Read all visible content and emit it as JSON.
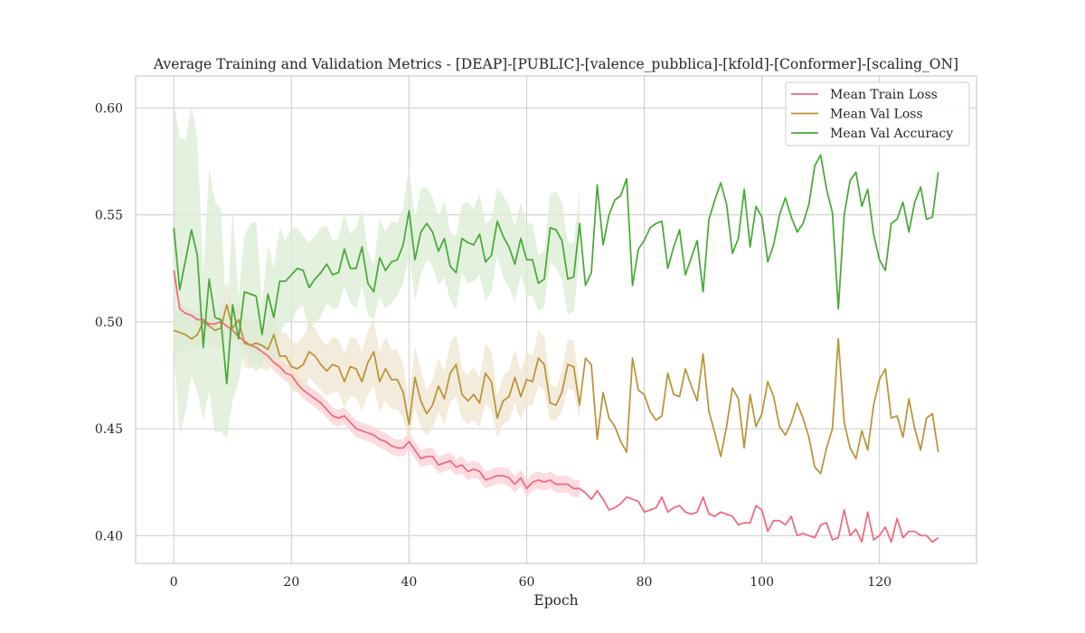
{
  "chart_data": {
    "type": "line",
    "title": "Average Training and Validation Metrics - [DEAP]-[PUBLIC]-[valence_pubblica]-[kfold]-[Conformer]-[scaling_ON]",
    "xlabel": "Epoch",
    "ylabel": "",
    "xlim": [
      -6.5,
      136.5
    ],
    "ylim": [
      0.387,
      0.615
    ],
    "xticks": [
      0,
      20,
      40,
      60,
      80,
      100,
      120
    ],
    "yticks": [
      0.4,
      0.45,
      0.5,
      0.55,
      0.6
    ],
    "grid": true,
    "legend": {
      "position": "top-right"
    },
    "bands_shown_until_epoch": 69,
    "series": [
      {
        "name": "Mean Train Loss",
        "color": "#f0697e",
        "band_color": "#fbd0d7",
        "values": [
          0.524,
          0.506,
          0.504,
          0.503,
          0.501,
          0.501,
          0.499,
          0.499,
          0.5,
          0.498,
          0.496,
          0.493,
          0.491,
          0.489,
          0.488,
          0.486,
          0.484,
          0.481,
          0.479,
          0.476,
          0.475,
          0.471,
          0.468,
          0.466,
          0.464,
          0.462,
          0.459,
          0.456,
          0.455,
          0.456,
          0.453,
          0.45,
          0.449,
          0.448,
          0.447,
          0.445,
          0.444,
          0.442,
          0.441,
          0.441,
          0.444,
          0.44,
          0.436,
          0.437,
          0.437,
          0.433,
          0.434,
          0.435,
          0.432,
          0.433,
          0.43,
          0.431,
          0.43,
          0.426,
          0.427,
          0.428,
          0.428,
          0.427,
          0.424,
          0.427,
          0.422,
          0.425,
          0.426,
          0.425,
          0.426,
          0.424,
          0.424,
          0.424,
          0.422,
          0.422,
          0.42,
          0.417,
          0.421,
          0.417,
          0.412,
          0.413,
          0.415,
          0.418,
          0.417,
          0.416,
          0.411,
          0.412,
          0.413,
          0.418,
          0.411,
          0.413,
          0.414,
          0.411,
          0.41,
          0.411,
          0.418,
          0.41,
          0.409,
          0.411,
          0.41,
          0.409,
          0.405,
          0.406,
          0.406,
          0.414,
          0.412,
          0.402,
          0.407,
          0.407,
          0.405,
          0.409,
          0.4,
          0.401,
          0.4,
          0.399,
          0.405,
          0.406,
          0.398,
          0.399,
          0.412,
          0.4,
          0.403,
          0.397,
          0.411,
          0.398,
          0.4,
          0.404,
          0.397,
          0.408,
          0.399,
          0.402,
          0.402,
          0.4,
          0.4,
          0.397,
          0.399
        ],
        "band_lower": [
          0.52,
          0.503,
          0.501,
          0.5,
          0.498,
          0.498,
          0.496,
          0.496,
          0.497,
          0.495,
          0.493,
          0.49,
          0.488,
          0.486,
          0.485,
          0.483,
          0.48,
          0.477,
          0.475,
          0.472,
          0.471,
          0.467,
          0.464,
          0.462,
          0.46,
          0.458,
          0.455,
          0.452,
          0.451,
          0.452,
          0.449,
          0.446,
          0.445,
          0.444,
          0.443,
          0.441,
          0.44,
          0.438,
          0.437,
          0.437,
          0.44,
          0.436,
          0.432,
          0.433,
          0.433,
          0.429,
          0.43,
          0.431,
          0.428,
          0.429,
          0.426,
          0.427,
          0.426,
          0.422,
          0.423,
          0.424,
          0.424,
          0.423,
          0.42,
          0.423,
          0.418,
          0.421,
          0.422,
          0.421,
          0.422,
          0.42,
          0.42,
          0.42,
          0.418,
          0.418
        ],
        "band_upper": [
          0.528,
          0.509,
          0.507,
          0.506,
          0.504,
          0.504,
          0.502,
          0.502,
          0.503,
          0.501,
          0.499,
          0.496,
          0.494,
          0.492,
          0.491,
          0.489,
          0.488,
          0.485,
          0.483,
          0.48,
          0.479,
          0.475,
          0.472,
          0.47,
          0.468,
          0.466,
          0.463,
          0.46,
          0.459,
          0.46,
          0.457,
          0.454,
          0.453,
          0.452,
          0.451,
          0.449,
          0.448,
          0.446,
          0.445,
          0.445,
          0.448,
          0.444,
          0.44,
          0.441,
          0.441,
          0.437,
          0.438,
          0.439,
          0.436,
          0.437,
          0.434,
          0.435,
          0.434,
          0.43,
          0.431,
          0.432,
          0.432,
          0.431,
          0.428,
          0.431,
          0.426,
          0.429,
          0.43,
          0.429,
          0.43,
          0.428,
          0.428,
          0.428,
          0.426,
          0.426
        ]
      },
      {
        "name": "Mean Val Loss",
        "color": "#b8943a",
        "band_color": "#efe4cf",
        "values": [
          0.496,
          0.495,
          0.494,
          0.492,
          0.494,
          0.5,
          0.498,
          0.496,
          0.497,
          0.508,
          0.497,
          0.501,
          0.49,
          0.489,
          0.49,
          0.489,
          0.487,
          0.494,
          0.484,
          0.484,
          0.479,
          0.478,
          0.48,
          0.486,
          0.484,
          0.48,
          0.477,
          0.48,
          0.479,
          0.472,
          0.479,
          0.478,
          0.472,
          0.481,
          0.486,
          0.472,
          0.478,
          0.473,
          0.473,
          0.467,
          0.452,
          0.474,
          0.463,
          0.457,
          0.461,
          0.47,
          0.464,
          0.476,
          0.48,
          0.466,
          0.463,
          0.466,
          0.462,
          0.476,
          0.472,
          0.455,
          0.463,
          0.465,
          0.474,
          0.465,
          0.473,
          0.472,
          0.483,
          0.48,
          0.462,
          0.461,
          0.467,
          0.48,
          0.479,
          0.461,
          0.483,
          0.48,
          0.445,
          0.467,
          0.455,
          0.451,
          0.444,
          0.439,
          0.483,
          0.468,
          0.466,
          0.458,
          0.454,
          0.456,
          0.476,
          0.466,
          0.465,
          0.478,
          0.47,
          0.463,
          0.485,
          0.458,
          0.448,
          0.437,
          0.451,
          0.469,
          0.464,
          0.441,
          0.466,
          0.451,
          0.457,
          0.472,
          0.465,
          0.451,
          0.447,
          0.453,
          0.462,
          0.455,
          0.446,
          0.432,
          0.429,
          0.441,
          0.45,
          0.492,
          0.453,
          0.441,
          0.436,
          0.449,
          0.44,
          0.461,
          0.473,
          0.478,
          0.455,
          0.456,
          0.446,
          0.464,
          0.45,
          0.44,
          0.455,
          0.457,
          0.439
        ],
        "band_lower": [
          0.486,
          0.486,
          0.487,
          0.486,
          0.487,
          0.491,
          0.489,
          0.488,
          0.488,
          0.495,
          0.489,
          0.492,
          0.479,
          0.478,
          0.48,
          0.478,
          0.477,
          0.482,
          0.474,
          0.474,
          0.468,
          0.467,
          0.467,
          0.474,
          0.471,
          0.468,
          0.465,
          0.467,
          0.467,
          0.46,
          0.465,
          0.465,
          0.458,
          0.466,
          0.47,
          0.458,
          0.463,
          0.459,
          0.459,
          0.455,
          0.443,
          0.46,
          0.45,
          0.447,
          0.45,
          0.458,
          0.452,
          0.462,
          0.465,
          0.455,
          0.452,
          0.454,
          0.451,
          0.462,
          0.459,
          0.446,
          0.452,
          0.454,
          0.462,
          0.454,
          0.461,
          0.461,
          0.47,
          0.468,
          0.454,
          0.454,
          0.458,
          0.469,
          0.468,
          0.454
        ],
        "band_upper": [
          0.505,
          0.505,
          0.502,
          0.499,
          0.501,
          0.51,
          0.507,
          0.505,
          0.506,
          0.52,
          0.506,
          0.51,
          0.501,
          0.5,
          0.501,
          0.5,
          0.498,
          0.507,
          0.495,
          0.495,
          0.491,
          0.49,
          0.493,
          0.499,
          0.497,
          0.492,
          0.489,
          0.493,
          0.492,
          0.485,
          0.493,
          0.492,
          0.486,
          0.496,
          0.501,
          0.486,
          0.493,
          0.487,
          0.487,
          0.48,
          0.463,
          0.489,
          0.477,
          0.468,
          0.473,
          0.483,
          0.477,
          0.49,
          0.494,
          0.478,
          0.475,
          0.479,
          0.474,
          0.49,
          0.486,
          0.465,
          0.475,
          0.477,
          0.487,
          0.477,
          0.486,
          0.484,
          0.496,
          0.493,
          0.471,
          0.469,
          0.477,
          0.492,
          0.491,
          0.469
        ]
      },
      {
        "name": "Mean Val Accuracy",
        "color": "#4aa83a",
        "band_color": "#d9ecd3",
        "values": [
          0.544,
          0.515,
          0.529,
          0.543,
          0.531,
          0.488,
          0.52,
          0.502,
          0.501,
          0.471,
          0.508,
          0.492,
          0.514,
          0.513,
          0.512,
          0.494,
          0.513,
          0.502,
          0.519,
          0.519,
          0.522,
          0.525,
          0.524,
          0.516,
          0.52,
          0.523,
          0.527,
          0.522,
          0.523,
          0.534,
          0.525,
          0.525,
          0.535,
          0.518,
          0.514,
          0.53,
          0.524,
          0.528,
          0.529,
          0.536,
          0.552,
          0.529,
          0.542,
          0.546,
          0.542,
          0.533,
          0.539,
          0.526,
          0.523,
          0.539,
          0.537,
          0.536,
          0.541,
          0.528,
          0.531,
          0.547,
          0.54,
          0.535,
          0.527,
          0.539,
          0.529,
          0.529,
          0.518,
          0.52,
          0.544,
          0.543,
          0.538,
          0.52,
          0.521,
          0.546,
          0.517,
          0.523,
          0.564,
          0.536,
          0.55,
          0.557,
          0.559,
          0.567,
          0.517,
          0.534,
          0.538,
          0.544,
          0.546,
          0.547,
          0.525,
          0.535,
          0.543,
          0.522,
          0.53,
          0.538,
          0.514,
          0.548,
          0.557,
          0.565,
          0.555,
          0.532,
          0.539,
          0.562,
          0.535,
          0.554,
          0.549,
          0.528,
          0.536,
          0.55,
          0.558,
          0.549,
          0.542,
          0.546,
          0.555,
          0.573,
          0.578,
          0.562,
          0.551,
          0.506,
          0.55,
          0.566,
          0.57,
          0.554,
          0.562,
          0.541,
          0.529,
          0.524,
          0.546,
          0.548,
          0.556,
          0.542,
          0.556,
          0.563,
          0.548,
          0.549,
          0.57
        ],
        "band_lower": [
          0.486,
          0.447,
          0.458,
          0.475,
          0.467,
          0.454,
          0.468,
          0.448,
          0.449,
          0.445,
          0.463,
          0.472,
          0.488,
          0.48,
          0.477,
          0.479,
          0.49,
          0.479,
          0.494,
          0.5,
          0.5,
          0.506,
          0.508,
          0.495,
          0.5,
          0.502,
          0.509,
          0.506,
          0.507,
          0.517,
          0.509,
          0.506,
          0.517,
          0.503,
          0.501,
          0.512,
          0.506,
          0.509,
          0.512,
          0.518,
          0.532,
          0.51,
          0.522,
          0.529,
          0.526,
          0.517,
          0.521,
          0.51,
          0.506,
          0.523,
          0.518,
          0.519,
          0.522,
          0.51,
          0.514,
          0.531,
          0.521,
          0.516,
          0.509,
          0.522,
          0.512,
          0.512,
          0.505,
          0.507,
          0.528,
          0.525,
          0.52,
          0.503,
          0.505,
          0.53
        ],
        "band_upper": [
          0.603,
          0.586,
          0.585,
          0.602,
          0.585,
          0.522,
          0.572,
          0.556,
          0.553,
          0.497,
          0.553,
          0.512,
          0.54,
          0.546,
          0.547,
          0.509,
          0.536,
          0.525,
          0.544,
          0.538,
          0.544,
          0.544,
          0.54,
          0.537,
          0.54,
          0.544,
          0.545,
          0.538,
          0.539,
          0.551,
          0.541,
          0.544,
          0.553,
          0.533,
          0.527,
          0.548,
          0.542,
          0.547,
          0.546,
          0.554,
          0.572,
          0.548,
          0.562,
          0.563,
          0.558,
          0.549,
          0.557,
          0.542,
          0.54,
          0.555,
          0.556,
          0.553,
          0.56,
          0.546,
          0.548,
          0.563,
          0.559,
          0.554,
          0.545,
          0.556,
          0.546,
          0.546,
          0.531,
          0.533,
          0.56,
          0.561,
          0.556,
          0.537,
          0.537,
          0.562
        ]
      }
    ]
  }
}
